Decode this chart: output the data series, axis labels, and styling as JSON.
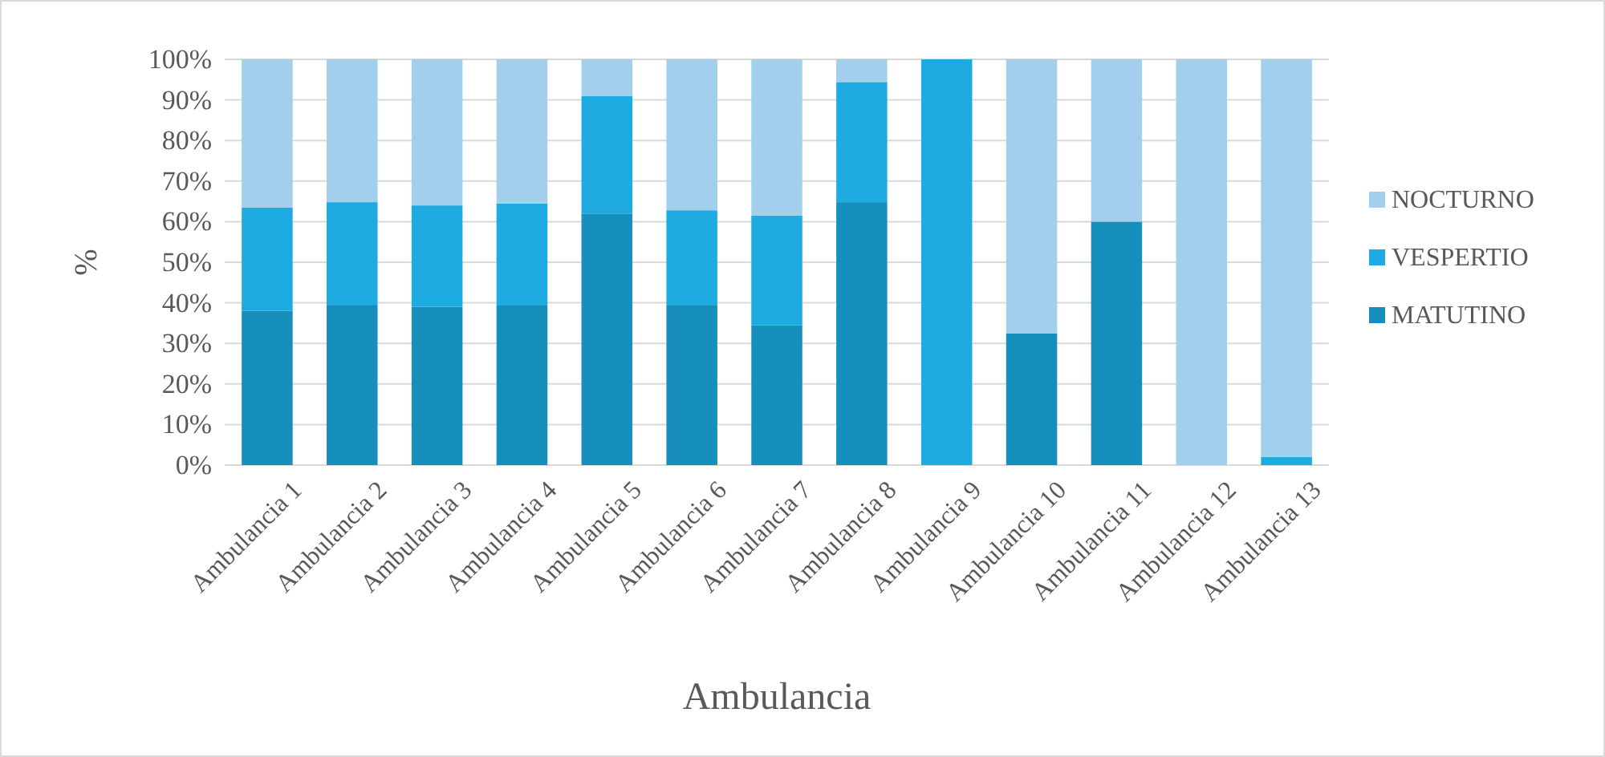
{
  "chart_data": {
    "type": "bar",
    "stacked": true,
    "xlabel": "Ambulancia",
    "ylabel": "%",
    "categories": [
      "Ambulancia 1",
      "Ambulancia 2",
      "Ambulancia 3",
      "Ambulancia 4",
      "Ambulancia 5",
      "Ambulancia 6",
      "Ambulancia 7",
      "Ambulancia 8",
      "Ambulancia 9",
      "Ambulancia 10",
      "Ambulancia 11",
      "Ambulancia 12",
      "Ambulancia 13"
    ],
    "series": [
      {
        "name": "MATUTINO",
        "color": "#168fbc",
        "values": [
          38,
          39.5,
          39,
          39.5,
          62,
          39.5,
          34.5,
          64.8,
          0,
          32.5,
          60,
          0,
          0
        ]
      },
      {
        "name": "VESPERTIO",
        "color": "#1eabe2",
        "values": [
          25.5,
          25.3,
          25,
          25,
          29,
          23.3,
          27,
          29.6,
          100,
          0,
          0,
          0,
          2
        ]
      },
      {
        "name": "NOCTURNO",
        "color": "#a2cfec",
        "values": [
          36.5,
          35.2,
          36,
          35.5,
          9,
          37.2,
          38.5,
          5.6,
          0,
          67.5,
          40,
          100,
          98
        ]
      }
    ],
    "ylim": [
      0,
      100
    ],
    "yticks": [
      {
        "value": 0,
        "label": "0%"
      },
      {
        "value": 10,
        "label": "10%"
      },
      {
        "value": 20,
        "label": "20%"
      },
      {
        "value": 30,
        "label": "30%"
      },
      {
        "value": 40,
        "label": "40%"
      },
      {
        "value": 50,
        "label": "50%"
      },
      {
        "value": 60,
        "label": "60%"
      },
      {
        "value": 70,
        "label": "70%"
      },
      {
        "value": 80,
        "label": "80%"
      },
      {
        "value": 90,
        "label": "90%"
      },
      {
        "value": 100,
        "label": "100%"
      }
    ],
    "grid": "y",
    "legend": "right"
  }
}
